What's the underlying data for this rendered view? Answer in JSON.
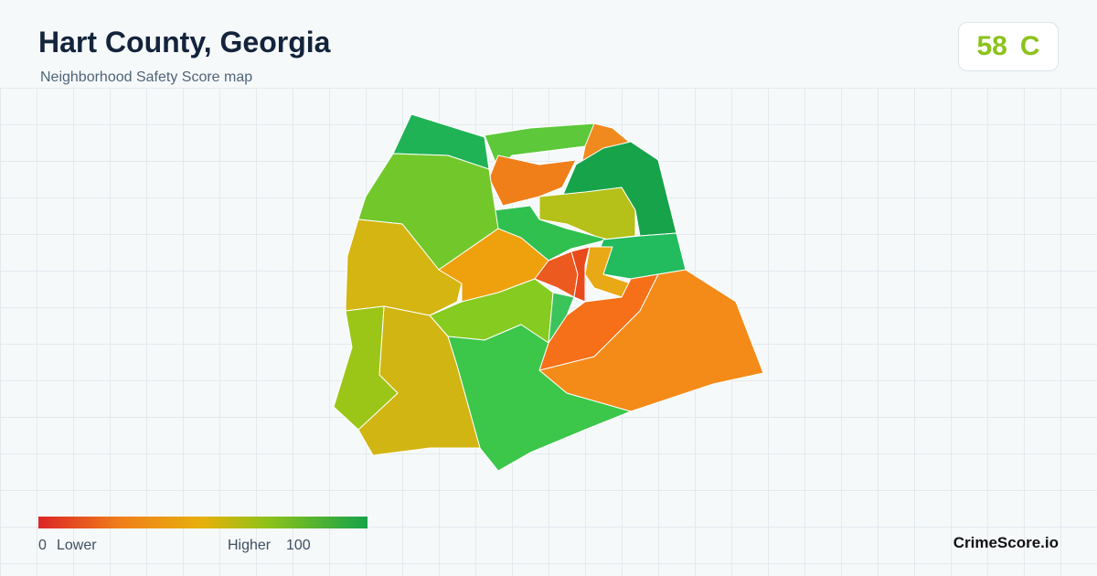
{
  "header": {
    "title": "Hart County, Georgia",
    "subtitle": "Neighborhood Safety Score map"
  },
  "score": {
    "value": 58,
    "grade": "C"
  },
  "legend": {
    "min": 0,
    "min_label": "Lower",
    "max_label": "Higher",
    "max": 100
  },
  "brand": "CrimeScore.io"
}
